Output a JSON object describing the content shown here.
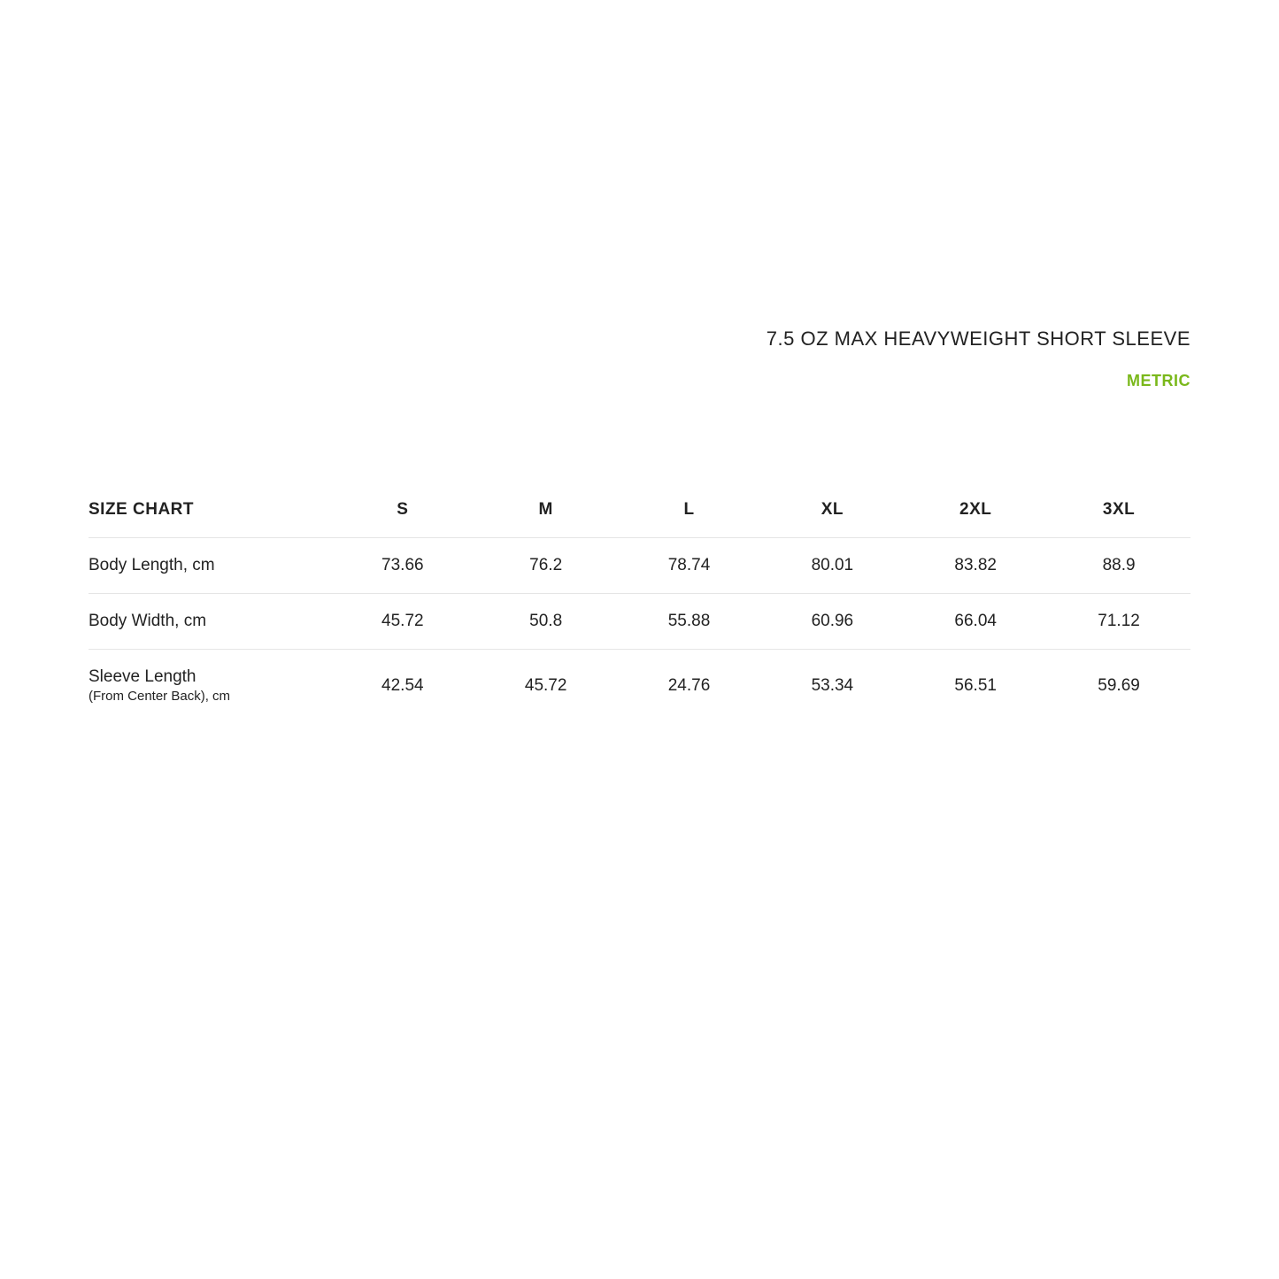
{
  "header": {
    "product_title": "7.5 OZ MAX HEAVYWEIGHT SHORT SLEEVE",
    "unit_label": "METRIC"
  },
  "table": {
    "heading": "SIZE CHART",
    "columns": [
      "S",
      "M",
      "L",
      "XL",
      "2XL",
      "3XL"
    ],
    "rows": [
      {
        "label": "Body Length, cm",
        "sublabel": "",
        "values": [
          "73.66",
          "76.2",
          "78.74",
          "80.01",
          "83.82",
          "88.9"
        ]
      },
      {
        "label": "Body Width, cm",
        "sublabel": "",
        "values": [
          "45.72",
          "50.8",
          "55.88",
          "60.96",
          "66.04",
          "71.12"
        ]
      },
      {
        "label": "Sleeve Length",
        "sublabel": "(From Center Back), cm",
        "values": [
          "42.54",
          "45.72",
          "24.76",
          "53.34",
          "56.51",
          "59.69"
        ]
      }
    ]
  },
  "styling": {
    "background_color": "#ffffff",
    "text_color": "#222222",
    "accent_color": "#7ab81b",
    "border_color": "#e5e5e5",
    "title_fontsize": 22,
    "unit_fontsize": 18,
    "table_header_fontsize": 19,
    "table_cell_fontsize": 19,
    "sublabel_fontsize": 15,
    "first_col_width_pct": 22,
    "data_col_width_pct": 13
  }
}
